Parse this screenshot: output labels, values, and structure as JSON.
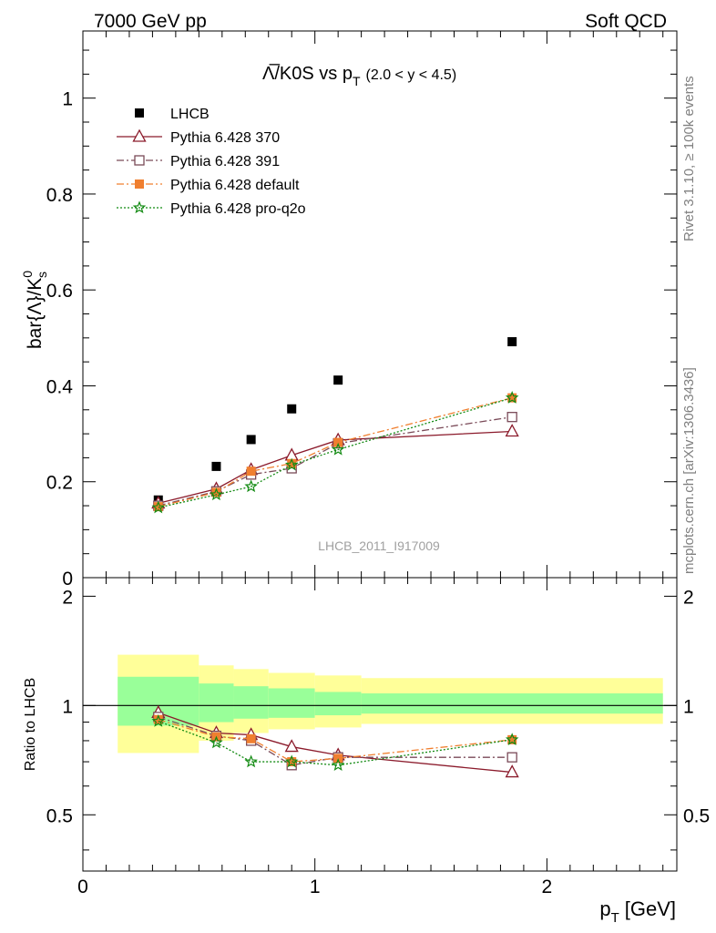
{
  "header": {
    "left": "7000 GeV pp",
    "right": "Soft QCD"
  },
  "side": {
    "rivet": "Rivet 3.1.10, ≥ 100k events",
    "mcplots": "mcplots.cern.ch [arXiv:1306.3436]"
  },
  "chart_data": [
    {
      "type": "scatter",
      "title_main": "Λ̅/K0S vs p",
      "title_sub": "T",
      "title_range": "(2.0 < y < 4.5)",
      "ylabel": "bar{Λ}/K",
      "ylabel_sup": "0",
      "ylabel_sub": "s",
      "watermark": "LHCB_2011_I917009",
      "xlim": [
        0,
        2.56
      ],
      "ylim": [
        0,
        1.14
      ],
      "yticks": [
        0,
        0.2,
        0.4,
        0.6,
        0.8,
        1
      ],
      "ytick_labels": [
        "0",
        "0.2",
        "0.4",
        "0.6",
        "0.8",
        "1"
      ],
      "legend_position": "top-left",
      "x": [
        0.325,
        0.575,
        0.725,
        0.9,
        1.1,
        1.85
      ],
      "series": [
        {
          "name": "LHCB",
          "color": "#000000",
          "marker": "square-filled",
          "style": "none",
          "values": [
            0.162,
            0.232,
            0.288,
            0.352,
            0.412,
            0.492
          ]
        },
        {
          "name": "Pythia 6.428 370",
          "color": "#8b1a2b",
          "marker": "triangle-open",
          "style": "solid",
          "values": [
            0.155,
            0.185,
            0.225,
            0.255,
            0.287,
            0.305
          ]
        },
        {
          "name": "Pythia 6.428 391",
          "color": "#7a4a58",
          "marker": "square-open",
          "style": "dashdot",
          "values": [
            0.15,
            0.18,
            0.215,
            0.228,
            0.28,
            0.335
          ]
        },
        {
          "name": "Pythia 6.428 default",
          "color": "#f07f2f",
          "marker": "square-filled",
          "style": "dashdot",
          "values": [
            0.148,
            0.178,
            0.222,
            0.238,
            0.282,
            0.375
          ]
        },
        {
          "name": "Pythia 6.428 pro-q2o",
          "color": "#128a12",
          "marker": "star",
          "style": "dotted",
          "values": [
            0.146,
            0.173,
            0.19,
            0.235,
            0.267,
            0.375
          ]
        }
      ]
    },
    {
      "type": "scatter",
      "ylabel": "Ratio to LHCB",
      "xlabel": "p",
      "xlabel_sub": "T",
      "xlabel_unit": "[GeV]",
      "xlim": [
        0,
        2.56
      ],
      "ylim": [
        0.35,
        2.25
      ],
      "xticks": [
        0,
        1,
        2
      ],
      "xtick_labels": [
        "0",
        "1",
        "2"
      ],
      "yticks": [
        0.5,
        1,
        2
      ],
      "ytick_labels": [
        "0.5",
        "1",
        "2"
      ],
      "reference": 1,
      "bands": [
        {
          "x0": 0.15,
          "x1": 0.5,
          "inner": [
            0.88,
            1.2
          ],
          "outer": [
            0.74,
            1.38
          ]
        },
        {
          "x0": 0.5,
          "x1": 0.65,
          "inner": [
            0.9,
            1.15
          ],
          "outer": [
            0.8,
            1.29
          ]
        },
        {
          "x0": 0.65,
          "x1": 0.8,
          "inner": [
            0.92,
            1.13
          ],
          "outer": [
            0.84,
            1.26
          ]
        },
        {
          "x0": 0.8,
          "x1": 1.0,
          "inner": [
            0.925,
            1.115
          ],
          "outer": [
            0.86,
            1.23
          ]
        },
        {
          "x0": 1.0,
          "x1": 1.2,
          "inner": [
            0.94,
            1.09
          ],
          "outer": [
            0.87,
            1.21
          ]
        },
        {
          "x0": 1.2,
          "x1": 2.5,
          "inner": [
            0.95,
            1.08
          ],
          "outer": [
            0.89,
            1.19
          ]
        }
      ],
      "x": [
        0.325,
        0.575,
        0.725,
        0.9,
        1.1,
        1.85
      ],
      "series": [
        {
          "name": "Pythia 6.428 370",
          "color": "#8b1a2b",
          "marker": "triangle-open",
          "style": "solid",
          "values": [
            0.955,
            0.84,
            0.83,
            0.77,
            0.73,
            0.655
          ]
        },
        {
          "name": "Pythia 6.428 391",
          "color": "#7a4a58",
          "marker": "square-open",
          "style": "dashdot",
          "values": [
            0.93,
            0.825,
            0.8,
            0.685,
            0.72,
            0.72
          ]
        },
        {
          "name": "Pythia 6.428 default",
          "color": "#f07f2f",
          "marker": "square-filled",
          "style": "dashdot",
          "values": [
            0.915,
            0.82,
            0.81,
            0.7,
            0.715,
            0.805
          ]
        },
        {
          "name": "Pythia 6.428 pro-q2o",
          "color": "#128a12",
          "marker": "star",
          "style": "dotted",
          "values": [
            0.905,
            0.79,
            0.7,
            0.7,
            0.685,
            0.805
          ]
        }
      ]
    }
  ]
}
